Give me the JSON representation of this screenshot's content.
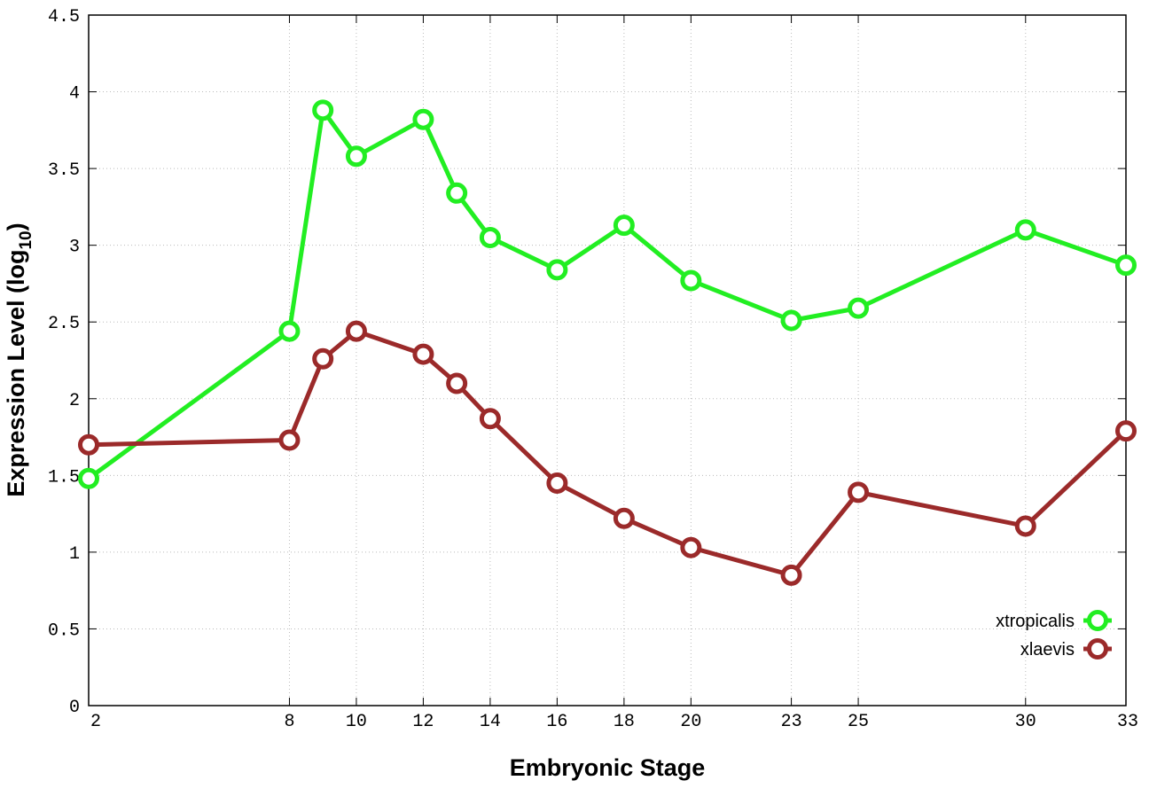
{
  "chart_data": {
    "type": "line",
    "xlabel": "Embryonic Stage",
    "ylabel_main": "Expression Level (log",
    "ylabel_sub": "10",
    "ylabel_close": ")",
    "x_tick_labels": [
      "2",
      "8",
      "10",
      "12",
      "14",
      "16",
      "18",
      "20",
      "23",
      "25",
      "30",
      "33"
    ],
    "y_tick_labels": [
      "0",
      "0.5",
      "1",
      "1.5",
      "2",
      "2.5",
      "3",
      "3.5",
      "4",
      "4.5"
    ],
    "y_ticks": [
      0,
      0.5,
      1,
      1.5,
      2,
      2.5,
      3,
      3.5,
      4,
      4.5
    ],
    "ylim": [
      0,
      4.5
    ],
    "xlim": [
      2,
      33
    ],
    "grid": true,
    "legend_position": "bottom-right",
    "x": [
      2,
      8,
      9,
      10,
      12,
      13,
      14,
      16,
      18,
      20,
      23,
      25,
      30,
      33
    ],
    "series": [
      {
        "name": "xtropicalis",
        "color": "#22ee22",
        "values": [
          1.48,
          2.44,
          3.88,
          3.58,
          3.82,
          3.34,
          3.05,
          2.84,
          3.13,
          2.77,
          2.51,
          2.59,
          3.1,
          2.87
        ]
      },
      {
        "name": "xlaevis",
        "color": "#9b2a2a",
        "values": [
          1.7,
          1.73,
          2.26,
          2.44,
          2.29,
          2.1,
          1.87,
          1.45,
          1.22,
          1.03,
          0.85,
          1.39,
          1.17,
          1.79
        ]
      }
    ]
  }
}
